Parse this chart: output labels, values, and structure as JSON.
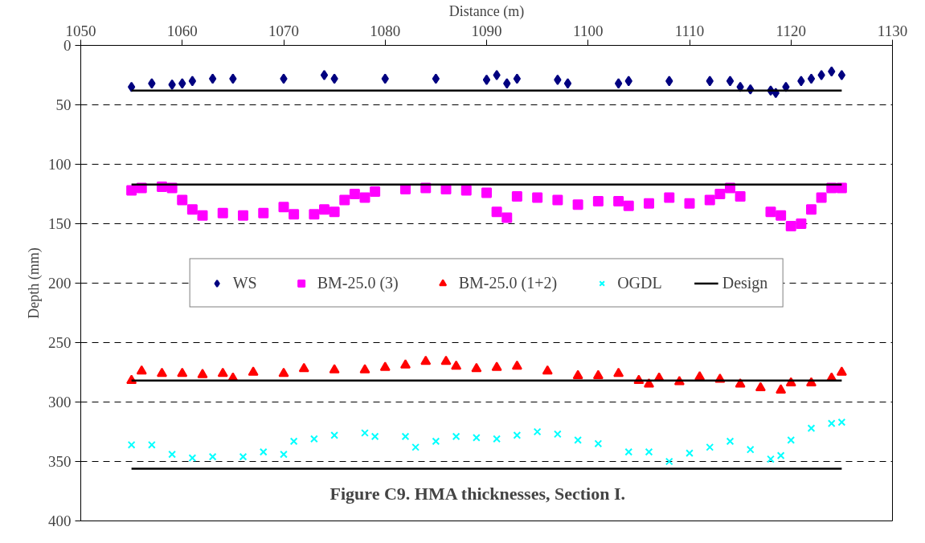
{
  "chart_data": {
    "type": "scatter",
    "xlabel": "Distance (m)",
    "ylabel": "Depth (mm)",
    "annotations": [
      "Figure C9. HMA thicknesses, Section I."
    ],
    "xlim": [
      1050,
      1130
    ],
    "xticks": [
      1050,
      1060,
      1070,
      1080,
      1090,
      1100,
      1110,
      1120,
      1130
    ],
    "ylim": [
      400,
      0
    ],
    "yticks": [
      0,
      50,
      100,
      150,
      200,
      250,
      300,
      350,
      400
    ],
    "grid": "y",
    "legend": "center",
    "series": [
      {
        "name": "WS",
        "color": "#000080",
        "marker": "diamond",
        "x": [
          1055,
          1057,
          1059,
          1060,
          1061,
          1063,
          1065,
          1070,
          1074,
          1075,
          1080,
          1085,
          1090,
          1091,
          1092,
          1093,
          1097,
          1098,
          1103,
          1104,
          1108,
          1112,
          1114,
          1115,
          1116,
          1118,
          1118.5,
          1119.5,
          1121,
          1122,
          1123,
          1124,
          1125
        ],
        "values": [
          35,
          32,
          33,
          32,
          30,
          28,
          28,
          28,
          25,
          28,
          28,
          28,
          29,
          25,
          32,
          28,
          29,
          32,
          32,
          30,
          30,
          30,
          30,
          35,
          37,
          38,
          40,
          35,
          30,
          28,
          25,
          22,
          25
        ]
      },
      {
        "name": "BM-25.0 (3)",
        "color": "#ff00ff",
        "marker": "square",
        "x": [
          1055,
          1056,
          1058,
          1059,
          1060,
          1061,
          1062,
          1064,
          1066,
          1068,
          1070,
          1071,
          1073,
          1074,
          1075,
          1076,
          1077,
          1078,
          1079,
          1082,
          1084,
          1086,
          1088,
          1090,
          1091,
          1092,
          1093,
          1095,
          1097,
          1099,
          1101,
          1103,
          1104,
          1106,
          1108,
          1110,
          1112,
          1113,
          1114,
          1115,
          1116.5,
          1118,
          1119,
          1120,
          1121,
          1122,
          1123,
          1124,
          1125
        ],
        "values": [
          122,
          120,
          119,
          120,
          130,
          138,
          143,
          141,
          143,
          141,
          136,
          142,
          142,
          138,
          140,
          130,
          125,
          128,
          123,
          121,
          120,
          121,
          122,
          124,
          140,
          145,
          127,
          128,
          130,
          134,
          131,
          131,
          135,
          133,
          128,
          133,
          130,
          125,
          120,
          127,
          null,
          140,
          143,
          152,
          150,
          138,
          128,
          120,
          120
        ]
      },
      {
        "name": "BM-25.0 (1+2)",
        "color": "#ff0000",
        "marker": "triangle",
        "x": [
          1055,
          1056,
          1058,
          1060,
          1062,
          1064,
          1065,
          1067,
          1070,
          1072,
          1075,
          1078,
          1080,
          1082,
          1084,
          1086,
          1087,
          1089,
          1091,
          1093,
          1096,
          1099,
          1101,
          1103,
          1105,
          1106,
          1107,
          1109,
          1111,
          1113,
          1115,
          1117,
          1119,
          1120,
          1122,
          1124,
          1125
        ],
        "values": [
          282,
          274,
          276,
          276,
          277,
          276,
          280,
          275,
          276,
          272,
          273,
          273,
          271,
          269,
          266,
          266,
          270,
          272,
          271,
          270,
          274,
          278,
          278,
          276,
          282,
          285,
          280,
          283,
          279,
          281,
          285,
          288,
          290,
          284,
          284,
          280,
          275
        ]
      },
      {
        "name": "OGDL",
        "color": "#00ffff",
        "marker": "cross",
        "x": [
          1055,
          1057,
          1059,
          1061,
          1063,
          1066,
          1068,
          1070,
          1071,
          1073,
          1075,
          1078,
          1079,
          1082,
          1083,
          1085,
          1087,
          1089,
          1091,
          1093,
          1095,
          1097,
          1099,
          1101,
          1104,
          1106,
          1108,
          1110,
          1112,
          1114,
          1116,
          1118,
          1119,
          1120,
          1122,
          1124,
          1125
        ],
        "values": [
          336,
          336,
          344,
          347,
          346,
          346,
          342,
          344,
          333,
          331,
          328,
          326,
          329,
          329,
          338,
          333,
          329,
          330,
          331,
          328,
          325,
          327,
          332,
          335,
          342,
          342,
          350,
          343,
          338,
          333,
          340,
          348,
          345,
          332,
          322,
          318,
          317
        ]
      },
      {
        "name": "Design",
        "type": "line",
        "color": "#000000",
        "marker": "none",
        "x": [
          1055,
          1125
        ],
        "values": [
          38,
          38
        ]
      },
      {
        "type": "line",
        "color": "#000000",
        "marker": "none",
        "x": [
          1055,
          1125
        ],
        "values": [
          117,
          117
        ]
      },
      {
        "type": "line",
        "color": "#000000",
        "marker": "none",
        "x": [
          1055,
          1125
        ],
        "values": [
          282,
          282
        ]
      },
      {
        "type": "line",
        "color": "#000000",
        "marker": "none",
        "x": [
          1055,
          1125
        ],
        "values": [
          356,
          356
        ]
      }
    ]
  }
}
